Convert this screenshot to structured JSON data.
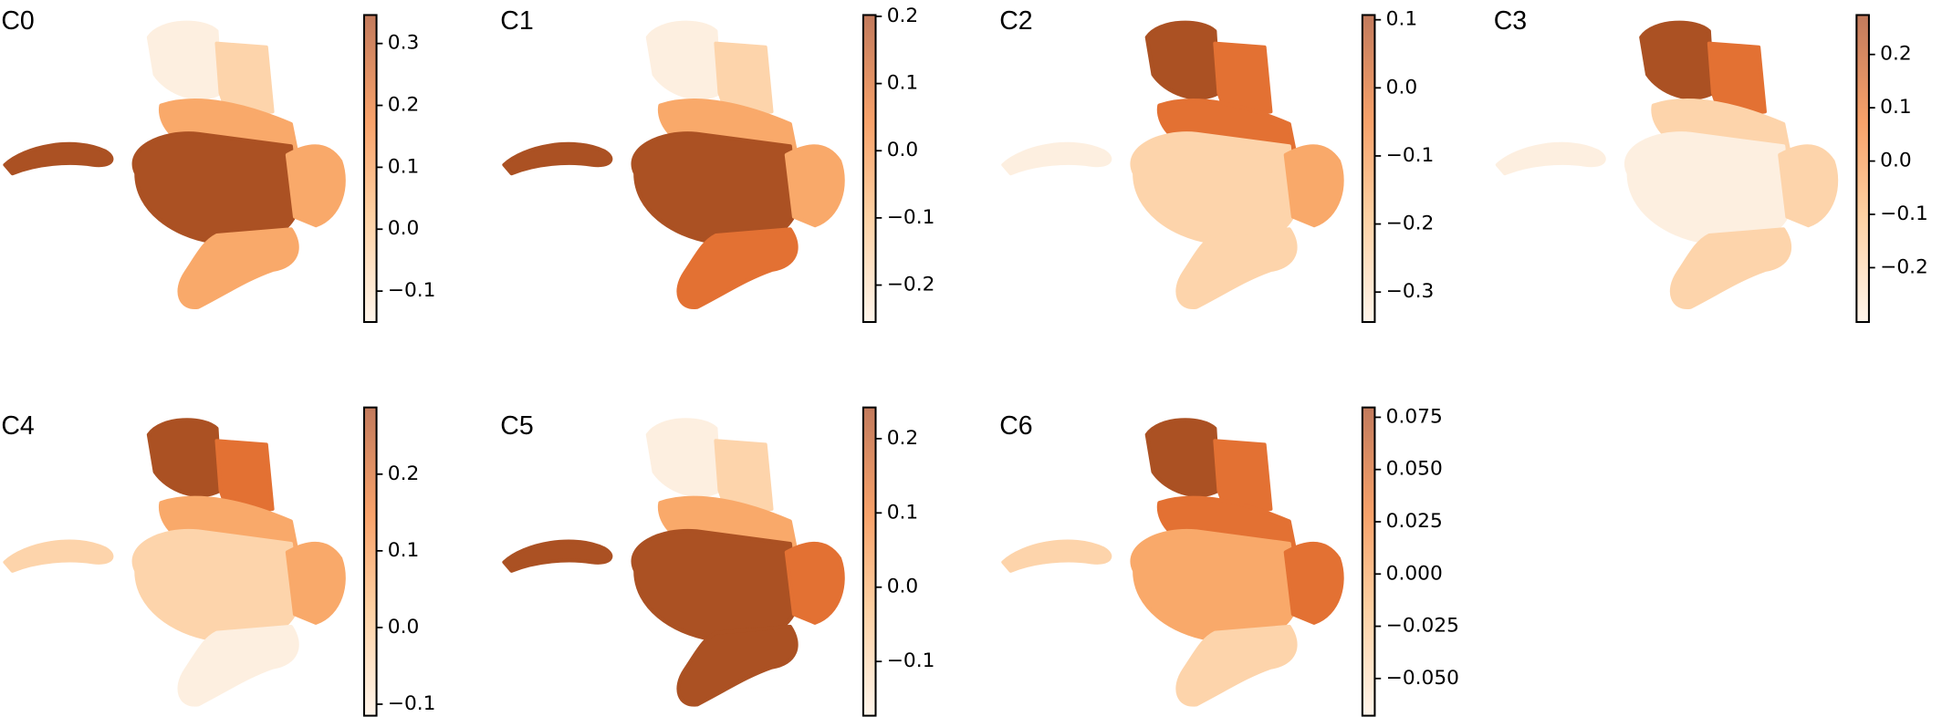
{
  "chart_data": [
    {
      "type": "scatter",
      "title": "C0",
      "clim": [
        -0.15,
        0.346
      ],
      "cticks": [
        {
          "value": -0.1,
          "label": "−0.1"
        },
        {
          "value": 0.0,
          "label": "0.0"
        },
        0.1,
        0.2,
        0.3
      ]
    },
    {
      "type": "scatter",
      "title": "C1",
      "clim": [
        -0.255,
        0.202
      ],
      "cticks": [
        {
          "value": -0.2,
          "label": "−0.2"
        },
        {
          "value": -0.1,
          "label": "−0.1"
        },
        {
          "value": 0.0,
          "label": "0.0"
        },
        0.1,
        0.2
      ]
    },
    {
      "type": "scatter",
      "title": "C2",
      "clim": [
        -0.344,
        0.107
      ],
      "cticks": [
        {
          "value": -0.3,
          "label": "−0.3"
        },
        {
          "value": -0.2,
          "label": "−0.2"
        },
        {
          "value": -0.1,
          "label": "−0.1"
        },
        {
          "value": 0.0,
          "label": "0.0"
        },
        0.1
      ]
    },
    {
      "type": "scatter",
      "title": "C3",
      "clim": [
        -0.302,
        0.274
      ],
      "cticks": [
        {
          "value": -0.2,
          "label": "−0.2"
        },
        {
          "value": -0.1,
          "label": "−0.1"
        },
        {
          "value": 0.0,
          "label": "0.0"
        },
        0.1,
        0.2
      ]
    },
    {
      "type": "scatter",
      "title": "C4",
      "clim": [
        -0.115,
        0.287
      ],
      "cticks": [
        {
          "value": -0.1,
          "label": "−0.1"
        },
        {
          "value": 0.0,
          "label": "0.0"
        },
        0.1,
        0.2
      ]
    },
    {
      "type": "scatter",
      "title": "C5",
      "clim": [
        -0.173,
        0.242
      ],
      "cticks": [
        {
          "value": -0.1,
          "label": "−0.1"
        },
        {
          "value": 0.0,
          "label": "0.0"
        },
        0.1,
        0.2
      ]
    },
    {
      "type": "scatter",
      "title": "C6",
      "clim": [
        -0.0678,
        0.0797
      ],
      "cticks": [
        {
          "value": -0.05,
          "label": "−0.050"
        },
        {
          "value": -0.025,
          "label": "−0.025"
        },
        {
          "value": 0,
          "label": "0.000"
        },
        0.025,
        {
          "value": 0.05,
          "label": "0.050"
        },
        0.075
      ]
    }
  ]
}
